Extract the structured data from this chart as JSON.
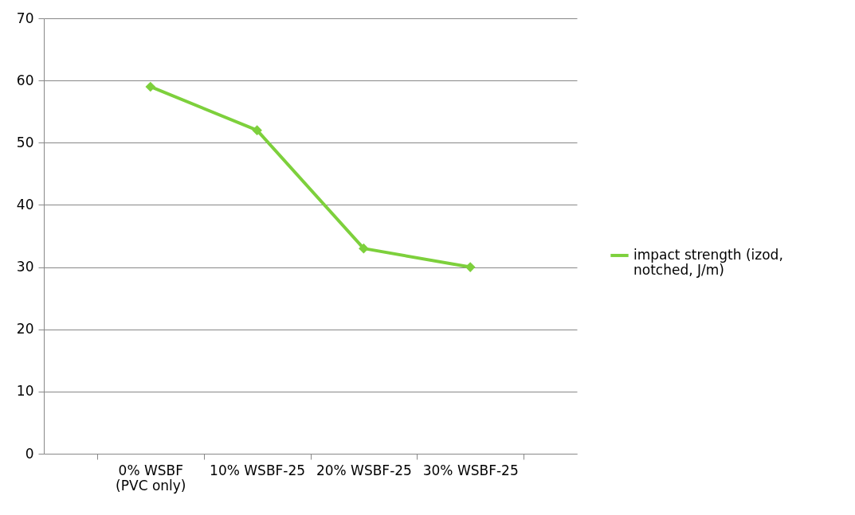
{
  "chart_data": {
    "type": "line",
    "categories": [
      "0% WSBF\n(PVC only)",
      "10% WSBF-25",
      "20% WSBF-25",
      "30% WSBF-25"
    ],
    "series": [
      {
        "name": "impact strength (izod,\nnotched, J/m)",
        "color": "#7dd03c",
        "values": [
          59,
          52,
          33,
          30
        ]
      }
    ],
    "ylim": [
      0,
      70
    ],
    "yticks": [
      0,
      10,
      20,
      30,
      40,
      50,
      60,
      70
    ],
    "grid": "y",
    "legend": "right",
    "marker": "diamond",
    "line_style": "solid"
  }
}
